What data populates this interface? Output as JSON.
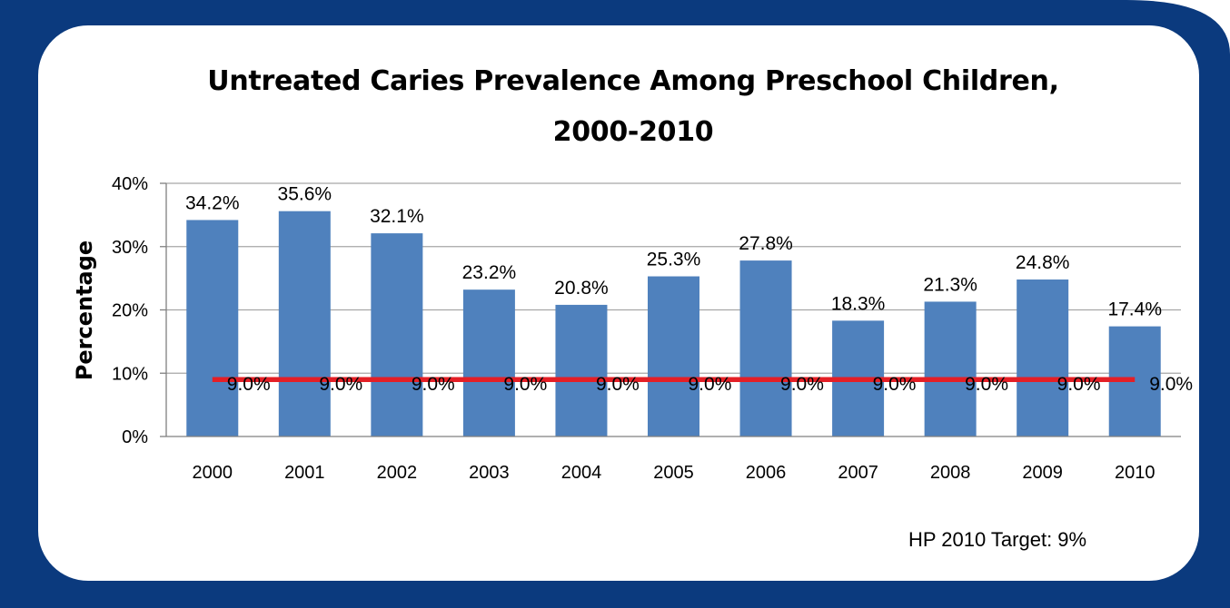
{
  "chart_data": {
    "type": "bar",
    "title_line1": "Untreated Caries Prevalence Among Preschool Children,",
    "title_line2": "2000-2010",
    "ylabel": "Percentage",
    "xlabel": "",
    "categories": [
      "2000",
      "2001",
      "2002",
      "2003",
      "2004",
      "2005",
      "2006",
      "2007",
      "2008",
      "2009",
      "2010"
    ],
    "series": [
      {
        "values": [
          34.2,
          35.6,
          32.1,
          23.2,
          20.8,
          25.3,
          27.8,
          18.3,
          21.3,
          24.8,
          17.4
        ],
        "labels": [
          "34.2%",
          "35.6%",
          "32.1%",
          "23.2%",
          "20.8%",
          "25.3%",
          "27.8%",
          "18.3%",
          "21.3%",
          "24.8%",
          "17.4%"
        ],
        "color": "#4F81BD",
        "mark": "bar"
      },
      {
        "values": [
          9.0,
          9.0,
          9.0,
          9.0,
          9.0,
          9.0,
          9.0,
          9.0,
          9.0,
          9.0,
          9.0
        ],
        "labels": [
          "9.0%",
          "9.0%",
          "9.0%",
          "9.0%",
          "9.0%",
          "9.0%",
          "9.0%",
          "9.0%",
          "9.0%",
          "9.0%",
          "9.0%"
        ],
        "color": "#E41F26",
        "mark": "line"
      }
    ],
    "yticks": [
      0,
      10,
      20,
      30,
      40
    ],
    "ytick_labels": [
      "0%",
      "10%",
      "20%",
      "30%",
      "40%"
    ],
    "ylim": [
      0,
      40
    ],
    "grid": true,
    "legend": "none",
    "footnote": "HP 2010 Target: 9%"
  },
  "colors": {
    "frame": "#0B3A7E",
    "bar": "#4F81BD",
    "target_line": "#E41F26",
    "gridline": "#A6A6A6"
  }
}
